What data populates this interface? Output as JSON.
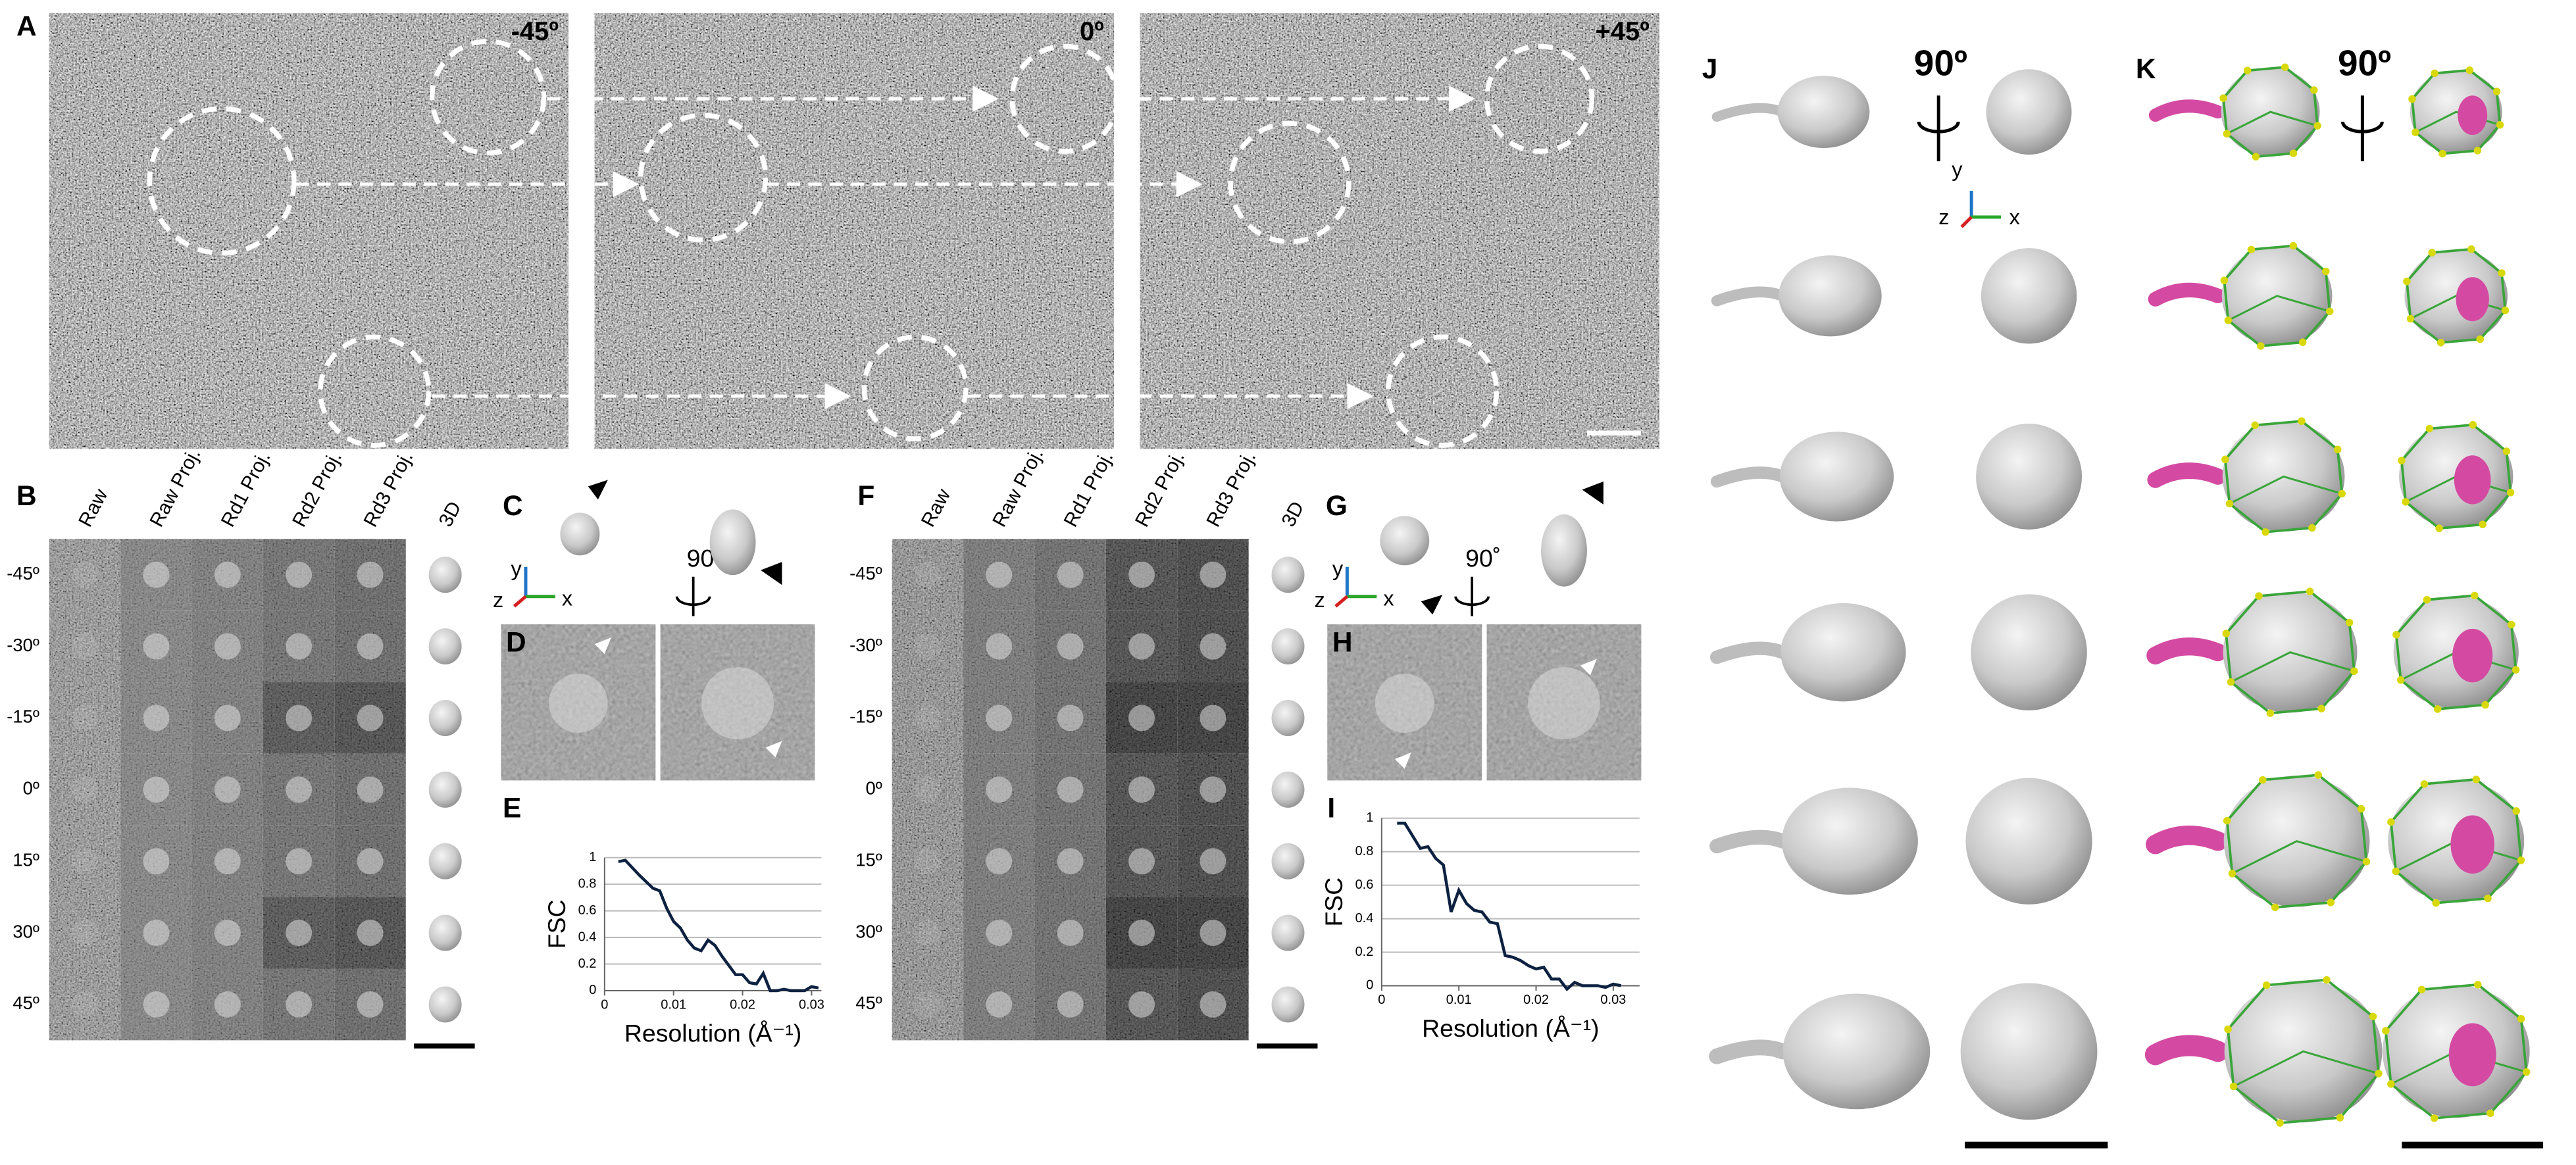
{
  "panels": {
    "A": {
      "label": "A",
      "angles": [
        "-45º",
        "0º",
        "+45º"
      ]
    },
    "B": {
      "label": "B",
      "columns": [
        "Raw",
        "Raw Proj.",
        "Rd1 Proj.",
        "Rd2 Proj.",
        "Rd3 Proj.",
        "3D"
      ],
      "rows": [
        "-45º",
        "-30º",
        "-15º",
        "0º",
        "15º",
        "30º",
        "45º"
      ]
    },
    "C": {
      "label": "C",
      "rotation": "90˚",
      "axes": [
        "y",
        "z",
        "x"
      ]
    },
    "D": {
      "label": "D"
    },
    "E": {
      "label": "E"
    },
    "F": {
      "label": "F",
      "columns": [
        "Raw",
        "Raw Proj.",
        "Rd1 Proj.",
        "Rd2 Proj.",
        "Rd3 Proj.",
        "3D"
      ],
      "rows": [
        "-45º",
        "-30º",
        "-15º",
        "0º",
        "15º",
        "30º",
        "45º"
      ]
    },
    "G": {
      "label": "G",
      "rotation": "90˚",
      "axes": [
        "y",
        "z",
        "x"
      ]
    },
    "H": {
      "label": "H"
    },
    "I": {
      "label": "I"
    },
    "J": {
      "label": "J",
      "rotation": "90º",
      "axes": [
        "y",
        "z",
        "x"
      ]
    },
    "K": {
      "label": "K",
      "rotation": "90º"
    }
  },
  "chart_data": [
    {
      "type": "line",
      "y_label": "FSC",
      "x_label": "Resolution (Å⁻¹)",
      "color": "#0d2140",
      "grid": true,
      "x": [
        0.002,
        0.003,
        0.005,
        0.007,
        0.008,
        0.009,
        0.01,
        0.011,
        0.012,
        0.013,
        0.014,
        0.015,
        0.016,
        0.017,
        0.018,
        0.019,
        0.02,
        0.021,
        0.022,
        0.023,
        0.024,
        0.025,
        0.026,
        0.027,
        0.028,
        0.029,
        0.03,
        0.031
      ],
      "values": [
        0.97,
        0.98,
        0.87,
        0.77,
        0.75,
        0.62,
        0.52,
        0.47,
        0.38,
        0.32,
        0.3,
        0.38,
        0.34,
        0.26,
        0.19,
        0.12,
        0.12,
        0.06,
        0.05,
        0.13,
        0.0,
        0.0,
        0.01,
        0.0,
        0.0,
        0.0,
        0.03,
        0.02
      ],
      "xlim": [
        0,
        0.03
      ],
      "xticks": [
        0,
        0.01,
        0.02,
        0.03
      ],
      "ylim": [
        0,
        1
      ],
      "yticks": [
        0,
        0.2,
        0.4,
        0.6,
        0.8,
        1
      ]
    },
    {
      "type": "line",
      "y_label": "FSC",
      "x_label": "Resolution (Å⁻¹)",
      "color": "#0d2140",
      "grid": true,
      "x": [
        0.002,
        0.003,
        0.005,
        0.006,
        0.007,
        0.008,
        0.009,
        0.01,
        0.011,
        0.012,
        0.013,
        0.014,
        0.015,
        0.016,
        0.017,
        0.018,
        0.019,
        0.02,
        0.021,
        0.022,
        0.023,
        0.024,
        0.025,
        0.026,
        0.027,
        0.028,
        0.029,
        0.03,
        0.031
      ],
      "values": [
        0.97,
        0.97,
        0.82,
        0.83,
        0.76,
        0.72,
        0.44,
        0.57,
        0.49,
        0.45,
        0.44,
        0.38,
        0.37,
        0.18,
        0.17,
        0.15,
        0.12,
        0.1,
        0.11,
        0.04,
        0.04,
        -0.02,
        0.02,
        0.0,
        0.0,
        0.0,
        -0.01,
        0.01,
        0.0
      ],
      "xlim": [
        0,
        0.03
      ],
      "xticks": [
        0,
        0.01,
        0.02,
        0.03
      ],
      "ylim": [
        0,
        1
      ],
      "yticks": [
        0,
        0.2,
        0.4,
        0.6,
        0.8,
        1
      ]
    }
  ]
}
